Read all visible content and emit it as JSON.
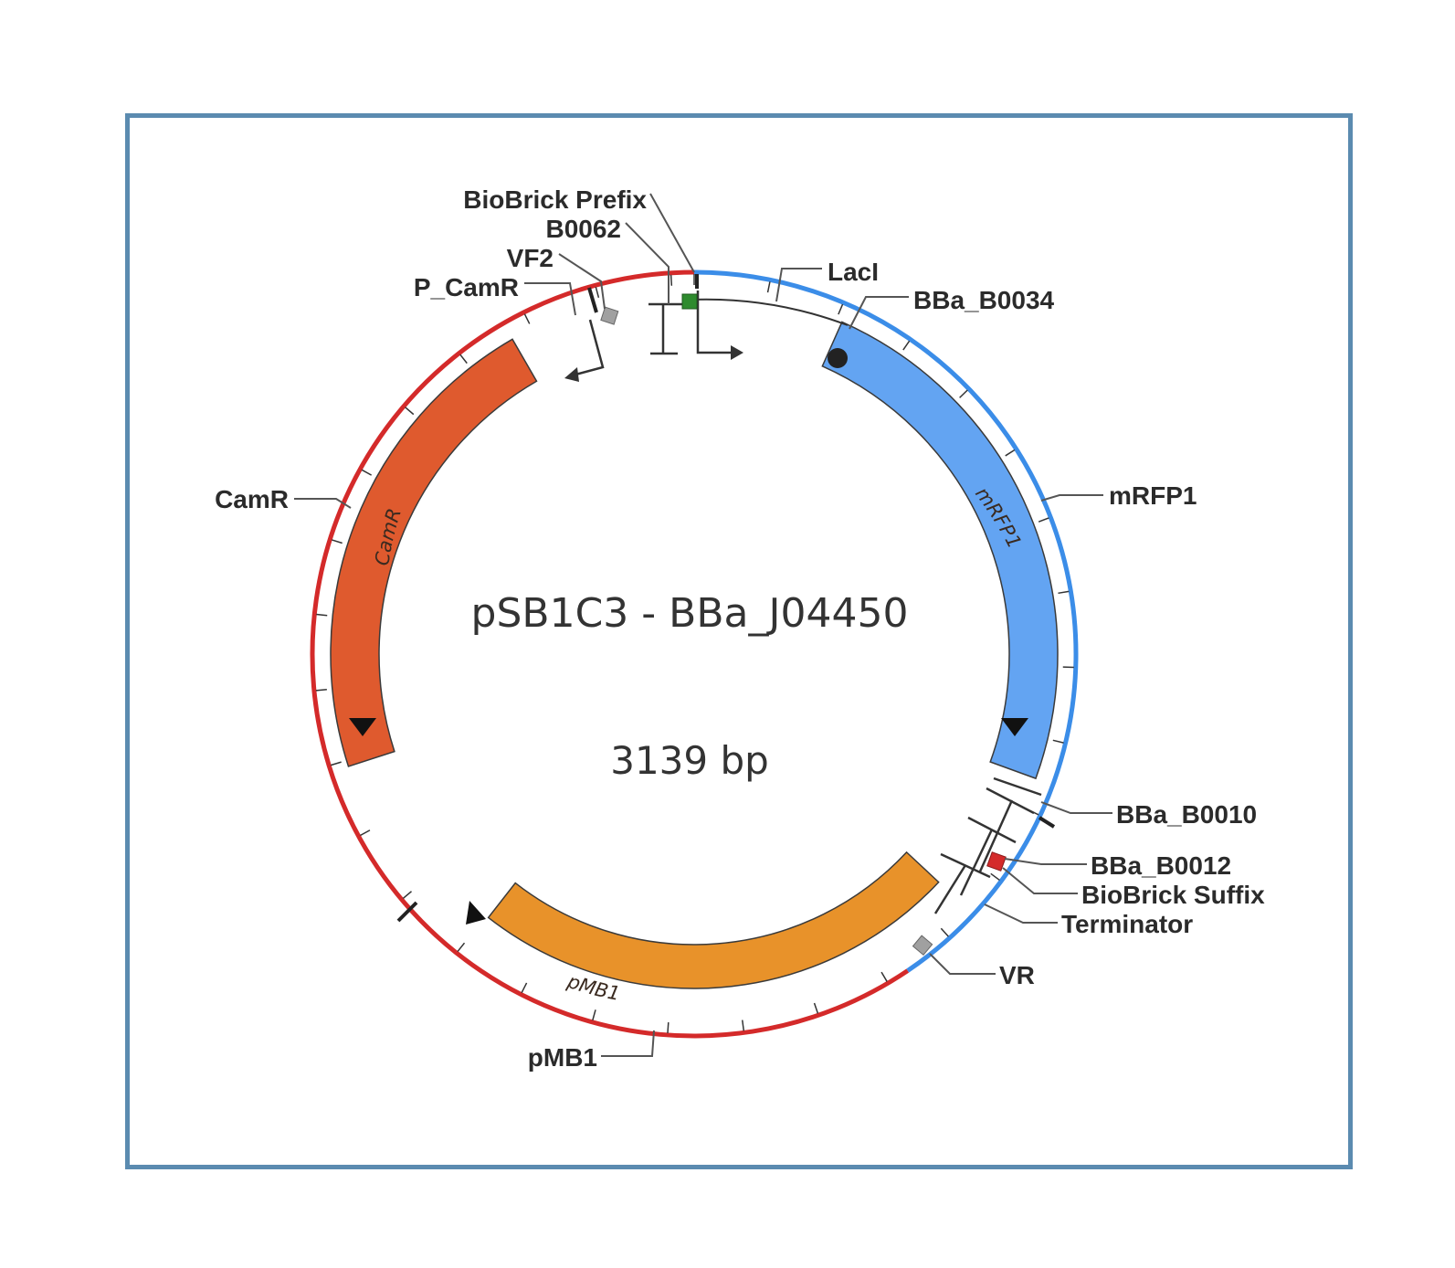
{
  "plasmid": {
    "name": "pSB1C3 - BBa_J04450",
    "size": "3139 bp"
  },
  "colors": {
    "frame": "#5b8bb0",
    "backbone": "#d42a2a",
    "insert": "#3b8de8",
    "camr": "#df5a2e",
    "mrfp1": "#63a4f2",
    "pmb1": "#e8922a",
    "prefix_site": "#2e8b2e",
    "suffix_site": "#d42a2a",
    "primer": "#999999"
  },
  "features": {
    "camr_arc": "CamR",
    "mrfp1_arc": "mRFP1",
    "pmb1_arc": "pMB1"
  },
  "labels": {
    "biobrick_prefix": "BioBrick Prefix",
    "b0062": "B0062",
    "vf2": "VF2",
    "p_camr": "P_CamR",
    "laci": "LacI",
    "bba_b0034": "BBa_B0034",
    "mrfp1": "mRFP1",
    "camr": "CamR",
    "bba_b0010": "BBa_B0010",
    "bba_b0012": "BBa_B0012",
    "biobrick_suffix": "BioBrick Suffix",
    "terminator": "Terminator",
    "vr": "VR",
    "pmb1": "pMB1"
  },
  "icons": {
    "promoter": "promoter-arrow-icon",
    "rbs": "rbs-dot-icon",
    "terminator": "terminator-icon",
    "primer": "primer-diamond-icon"
  }
}
